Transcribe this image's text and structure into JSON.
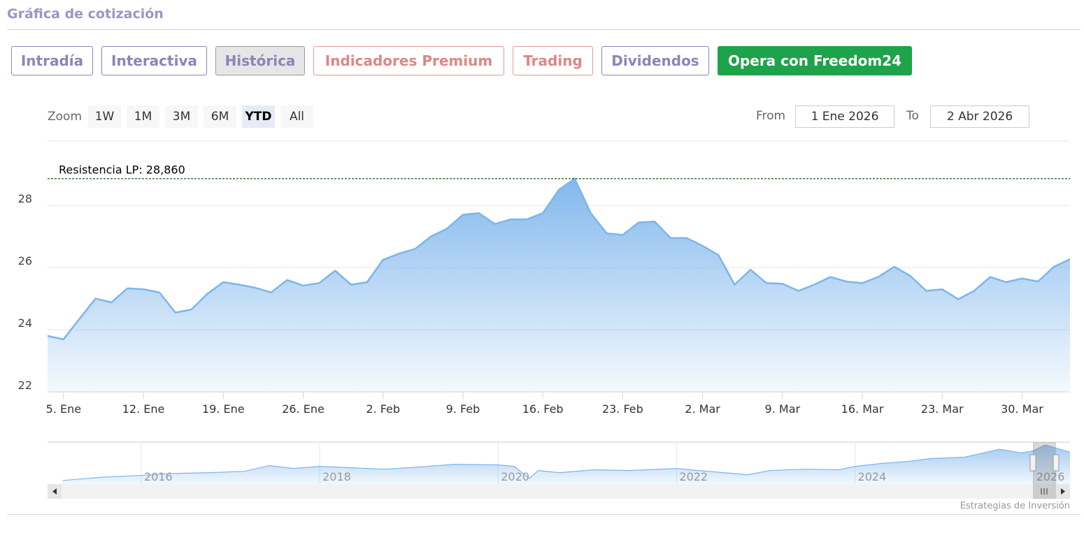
{
  "header": {
    "title": "Gráfica de cotización"
  },
  "tabs": {
    "items": [
      "Intradía",
      "Interactiva",
      "Histórica",
      "Indicadores Premium",
      "Trading",
      "Dividendos",
      "Opera con Freedom24"
    ],
    "selected": 2
  },
  "zoom": {
    "label": "Zoom",
    "buttons": [
      "1W",
      "1M",
      "3M",
      "6M",
      "YTD",
      "All"
    ],
    "selected": 4
  },
  "range": {
    "from_label": "From",
    "from": "1 Ene 2026",
    "to_label": "To",
    "to": "2 Abr 2026"
  },
  "chart_data": [
    {
      "type": "area",
      "color": "#7cb5ec",
      "x": [
        "2026-01-02",
        "2026-01-05",
        "2026-01-06",
        "2026-01-07",
        "2026-01-08",
        "2026-01-09",
        "2026-01-12",
        "2026-01-13",
        "2026-01-14",
        "2026-01-15",
        "2026-01-16",
        "2026-01-19",
        "2026-01-20",
        "2026-01-21",
        "2026-01-22",
        "2026-01-23",
        "2026-01-26",
        "2026-01-27",
        "2026-01-28",
        "2026-01-29",
        "2026-01-30",
        "2026-02-02",
        "2026-02-03",
        "2026-02-04",
        "2026-02-05",
        "2026-02-06",
        "2026-02-09",
        "2026-02-10",
        "2026-02-11",
        "2026-02-12",
        "2026-02-13",
        "2026-02-16",
        "2026-02-17",
        "2026-02-18",
        "2026-02-19",
        "2026-02-20",
        "2026-02-23",
        "2026-02-24",
        "2026-02-25",
        "2026-02-26",
        "2026-02-27",
        "2026-03-02",
        "2026-03-03",
        "2026-03-04",
        "2026-03-05",
        "2026-03-06",
        "2026-03-09",
        "2026-03-10",
        "2026-03-11",
        "2026-03-12",
        "2026-03-13",
        "2026-03-16",
        "2026-03-17",
        "2026-03-18",
        "2026-03-19",
        "2026-03-20",
        "2026-03-23",
        "2026-03-24",
        "2026-03-25",
        "2026-03-26",
        "2026-03-27",
        "2026-03-30",
        "2026-03-31",
        "2026-04-01",
        "2026-04-02"
      ],
      "values": [
        23.8,
        23.69,
        24.35,
        25.0,
        24.88,
        25.33,
        25.3,
        25.2,
        24.55,
        24.65,
        25.15,
        25.53,
        25.45,
        25.35,
        25.2,
        25.6,
        25.42,
        25.5,
        25.9,
        25.45,
        25.53,
        26.25,
        26.45,
        26.6,
        27.0,
        27.25,
        27.7,
        27.75,
        27.4,
        27.55,
        27.55,
        27.75,
        28.5,
        28.86,
        27.75,
        27.1,
        27.05,
        27.45,
        27.48,
        26.95,
        26.95,
        26.7,
        26.4,
        25.45,
        25.93,
        25.5,
        25.48,
        25.25,
        25.45,
        25.7,
        25.55,
        25.5,
        25.7,
        26.03,
        25.73,
        25.25,
        25.3,
        24.98,
        25.25,
        25.7,
        25.53,
        25.65,
        25.55,
        26.03,
        26.27
      ],
      "xticks": [
        {
          "value": "2026-01-05",
          "label": "5. Ene"
        },
        {
          "value": "2026-01-12",
          "label": "12. Ene"
        },
        {
          "value": "2026-01-19",
          "label": "19. Ene"
        },
        {
          "value": "2026-01-26",
          "label": "26. Ene"
        },
        {
          "value": "2026-02-02",
          "label": "2. Feb"
        },
        {
          "value": "2026-02-09",
          "label": "9. Feb"
        },
        {
          "value": "2026-02-16",
          "label": "16. Feb"
        },
        {
          "value": "2026-02-23",
          "label": "23. Feb"
        },
        {
          "value": "2026-03-02",
          "label": "2. Mar"
        },
        {
          "value": "2026-03-09",
          "label": "9. Mar"
        },
        {
          "value": "2026-03-16",
          "label": "16. Mar"
        },
        {
          "value": "2026-03-23",
          "label": "23. Mar"
        },
        {
          "value": "2026-03-30",
          "label": "30. Mar"
        }
      ],
      "ylim": [
        22,
        30
      ],
      "yticks": [
        22,
        24,
        26,
        28
      ],
      "grid": true,
      "annotations": [
        {
          "label": "Resistencia LP: 28,860",
          "value": 28.86
        }
      ]
    },
    {
      "type": "area",
      "color": "#7cb5ec",
      "x": [
        2015.12,
        2015.59,
        2015.98,
        2016.38,
        2016.77,
        2017.16,
        2017.43,
        2017.71,
        2018.0,
        2018.34,
        2018.73,
        2019.12,
        2019.51,
        2020.0,
        2020.18,
        2020.35,
        2020.45,
        2020.69,
        2021.08,
        2021.47,
        2022.0,
        2022.25,
        2022.8,
        2023.04,
        2023.43,
        2023.82,
        2024.0,
        2024.29,
        2024.6,
        2024.84,
        2025.23,
        2025.62,
        2025.86,
        2026.0,
        2026.13,
        2026.41
      ],
      "values": [
        9.9,
        11.7,
        12.5,
        13.6,
        14.0,
        14.7,
        17.7,
        16.2,
        17.3,
        16.6,
        15.8,
        17.0,
        18.4,
        18.1,
        17.3,
        11.0,
        15.1,
        14.0,
        15.5,
        15.1,
        16.2,
        15.1,
        12.9,
        15.1,
        15.8,
        15.5,
        17.3,
        18.8,
        19.9,
        21.4,
        22.2,
        26.3,
        24.4,
        25.5,
        28.5,
        24.8
      ],
      "xlim": [
        2014.95,
        2026.41
      ],
      "xticks": [
        2016,
        2018,
        2020,
        2022,
        2024,
        2026
      ],
      "ylim": [
        8,
        30
      ],
      "grid": true
    }
  ],
  "credits": "Estrategias de Inversión"
}
